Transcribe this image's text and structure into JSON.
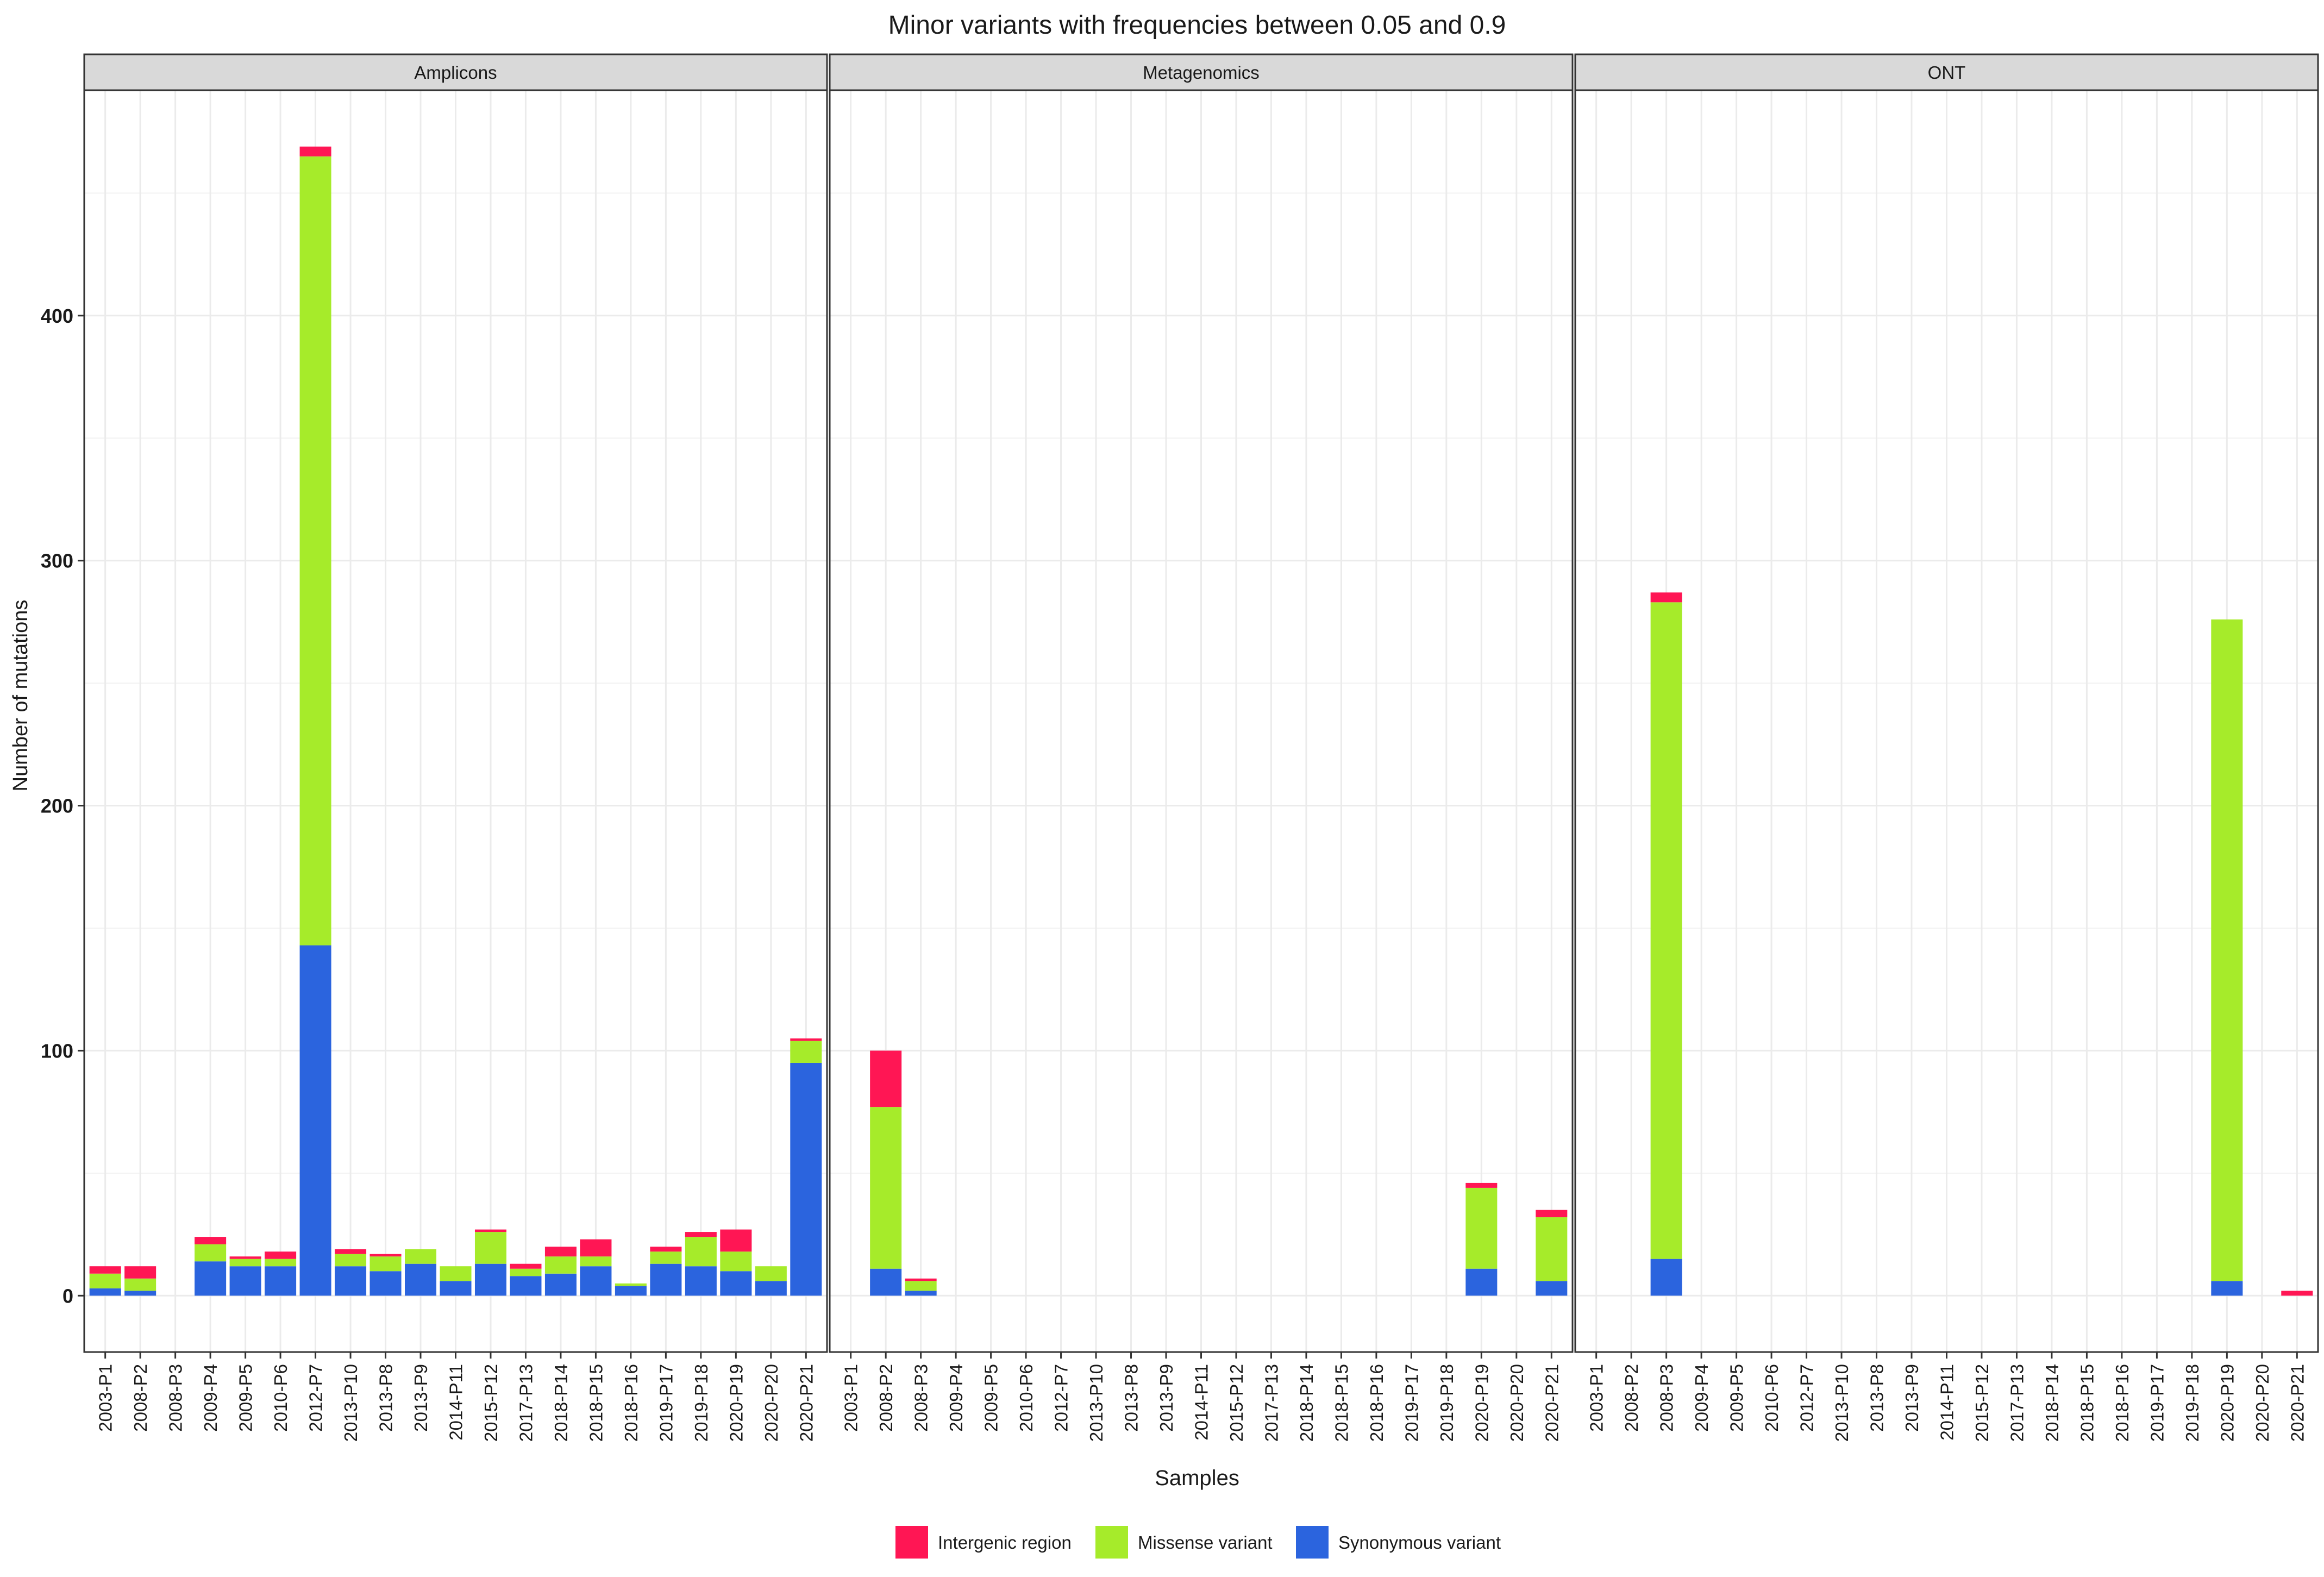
{
  "chart_data": {
    "type": "bar",
    "stacked": true,
    "title": "Minor variants with frequencies between 0.05 and 0.9",
    "xlabel": "Samples",
    "ylabel": "Number of mutations",
    "ylim": [
      -23,
      492
    ],
    "yticks": [
      0,
      100,
      200,
      300,
      400
    ],
    "ytick_labels": [
      "0",
      "100",
      "200",
      "300",
      "400"
    ],
    "grid": true,
    "legend_position": "bottom",
    "categories": [
      "2003-P1",
      "2008-P2",
      "2008-P3",
      "2009-P4",
      "2009-P5",
      "2010-P6",
      "2012-P7",
      "2013-P10",
      "2013-P8",
      "2013-P9",
      "2014-P11",
      "2015-P12",
      "2017-P13",
      "2018-P14",
      "2018-P15",
      "2018-P16",
      "2019-P17",
      "2019-P18",
      "2020-P19",
      "2020-P20",
      "2020-P21"
    ],
    "series": [
      {
        "name": "Intergenic region",
        "color": "#FF1654"
      },
      {
        "name": "Missense variant",
        "color": "#A6EB2A"
      },
      {
        "name": "Synonymous variant",
        "color": "#2B64DE"
      }
    ],
    "panels": [
      {
        "name": "Amplicons",
        "values": {
          "Synonymous variant": [
            3,
            2,
            0,
            14,
            12,
            12,
            143,
            12,
            10,
            13,
            6,
            13,
            8,
            9,
            12,
            4,
            13,
            12,
            10,
            6,
            95
          ],
          "Missense variant": [
            6,
            5,
            0,
            7,
            3,
            3,
            322,
            5,
            6,
            6,
            6,
            13,
            3,
            7,
            4,
            1,
            5,
            12,
            8,
            6,
            9
          ],
          "Intergenic region": [
            3,
            5,
            0,
            3,
            1,
            3,
            4,
            2,
            1,
            0,
            0,
            1,
            2,
            4,
            7,
            0,
            2,
            2,
            9,
            0,
            1
          ]
        }
      },
      {
        "name": "Metagenomics",
        "values": {
          "Synonymous variant": [
            0,
            11,
            2,
            0,
            0,
            0,
            0,
            0,
            0,
            0,
            0,
            0,
            0,
            0,
            0,
            0,
            0,
            0,
            11,
            0,
            6
          ],
          "Missense variant": [
            0,
            66,
            4,
            0,
            0,
            0,
            0,
            0,
            0,
            0,
            0,
            0,
            0,
            0,
            0,
            0,
            0,
            0,
            33,
            0,
            26
          ],
          "Intergenic region": [
            0,
            23,
            1,
            0,
            0,
            0,
            0,
            0,
            0,
            0,
            0,
            0,
            0,
            0,
            0,
            0,
            0,
            0,
            2,
            0,
            3
          ]
        }
      },
      {
        "name": "ONT",
        "values": {
          "Synonymous variant": [
            0,
            0,
            15,
            0,
            0,
            0,
            0,
            0,
            0,
            0,
            0,
            0,
            0,
            0,
            0,
            0,
            0,
            0,
            6,
            0,
            0
          ],
          "Missense variant": [
            0,
            0,
            268,
            0,
            0,
            0,
            0,
            0,
            0,
            0,
            0,
            0,
            0,
            0,
            0,
            0,
            0,
            0,
            270,
            0,
            0
          ],
          "Intergenic region": [
            0,
            0,
            4,
            0,
            0,
            0,
            0,
            0,
            0,
            0,
            0,
            0,
            0,
            0,
            0,
            0,
            0,
            0,
            0,
            0,
            2
          ]
        }
      }
    ]
  }
}
